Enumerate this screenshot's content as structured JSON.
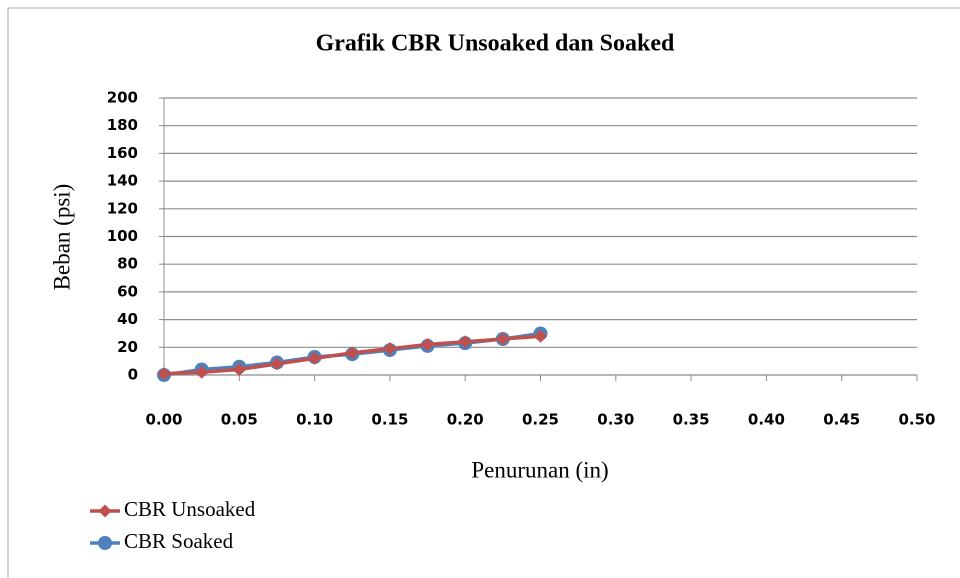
{
  "chart_data": {
    "type": "line",
    "title": "Grafik CBR Unsoaked dan Soaked",
    "x_label": "Penurunan (in)",
    "y_label": "Beban (psi)",
    "x": [
      0,
      0.025,
      0.05,
      0.075,
      0.1,
      0.125,
      0.15,
      0.175,
      0.2,
      0.225,
      0.25
    ],
    "series": [
      {
        "name": "CBR Unsoaked",
        "color": "#c0504d",
        "marker": "diamond",
        "values": [
          1,
          2,
          4,
          8,
          12,
          16,
          19,
          22,
          24,
          26,
          28
        ]
      },
      {
        "name": "CBR Soaked",
        "color": "#4f81bd",
        "marker": "circle",
        "values": [
          0,
          4,
          6,
          9,
          13,
          15,
          18,
          21,
          23,
          26,
          30
        ]
      }
    ],
    "xlim": [
      0,
      0.5
    ],
    "xticks": [
      {
        "value": 0,
        "label": "0.00"
      },
      {
        "value": 0.05,
        "label": "0.05"
      },
      {
        "value": 0.1,
        "label": "0.10"
      },
      {
        "value": 0.15,
        "label": "0.15"
      },
      {
        "value": 0.2,
        "label": "0.20"
      },
      {
        "value": 0.25,
        "label": "0.25"
      },
      {
        "value": 0.3,
        "label": "0.30"
      },
      {
        "value": 0.35,
        "label": "0.35"
      },
      {
        "value": 0.4,
        "label": "0.40"
      },
      {
        "value": 0.45,
        "label": "0.45"
      },
      {
        "value": 0.5,
        "label": "0.50"
      }
    ],
    "ylim": [
      0,
      200
    ],
    "yticks": [
      0,
      20,
      40,
      60,
      80,
      100,
      120,
      140,
      160,
      180,
      200
    ],
    "grid": true,
    "legend": "bottom-left"
  }
}
